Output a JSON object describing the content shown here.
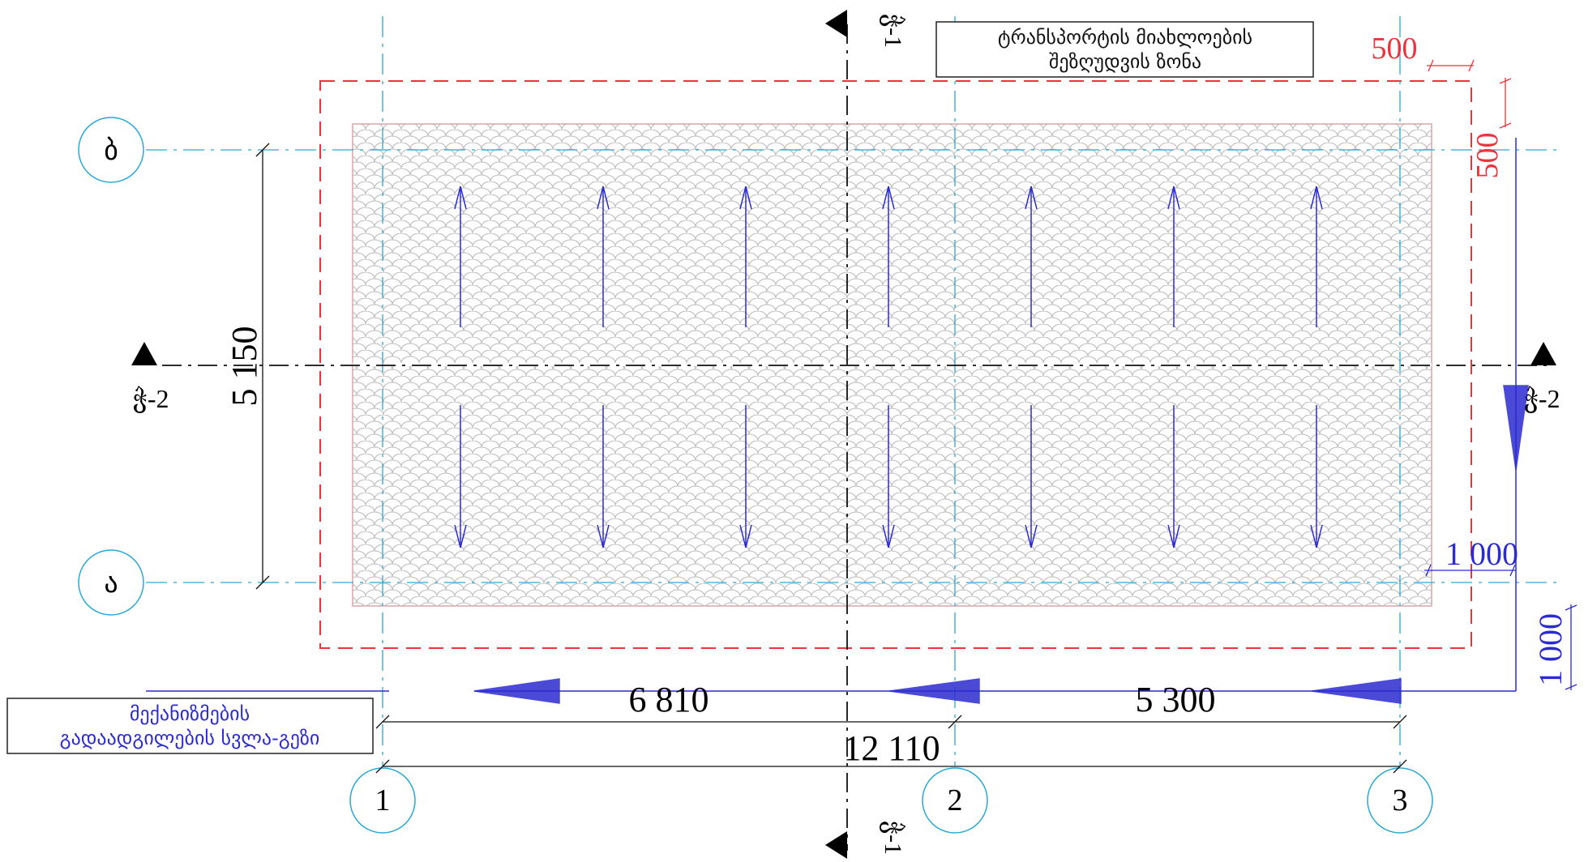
{
  "axes": {
    "letters": [
      "ბ",
      "ა"
    ],
    "numbers": [
      "1",
      "2",
      "3"
    ]
  },
  "sections": {
    "vertical": "ჭ-1",
    "horizontal": "ჭ-2"
  },
  "notes": {
    "zone_line1": "ტრანსპორტის მიახლოების",
    "zone_line2": "შეზღუდვის ზონა",
    "path_line1": "მექანიზმების",
    "path_line2": "გადაადგილების სვლა-გეზი"
  },
  "dimensions": {
    "left_height": "5 150",
    "span_1_2": "6 810",
    "span_2_3": "5 300",
    "total": "12 110",
    "offset_top_h": "500",
    "offset_top_v": "500",
    "offset_right_h": "1 000",
    "offset_right_v": "1 000"
  },
  "colors": {
    "axis": "#29a8d6",
    "zone": "#e8343a",
    "arrow": "#2b2bd0",
    "dim": "#111111",
    "pattern": "#b4b4b4"
  }
}
